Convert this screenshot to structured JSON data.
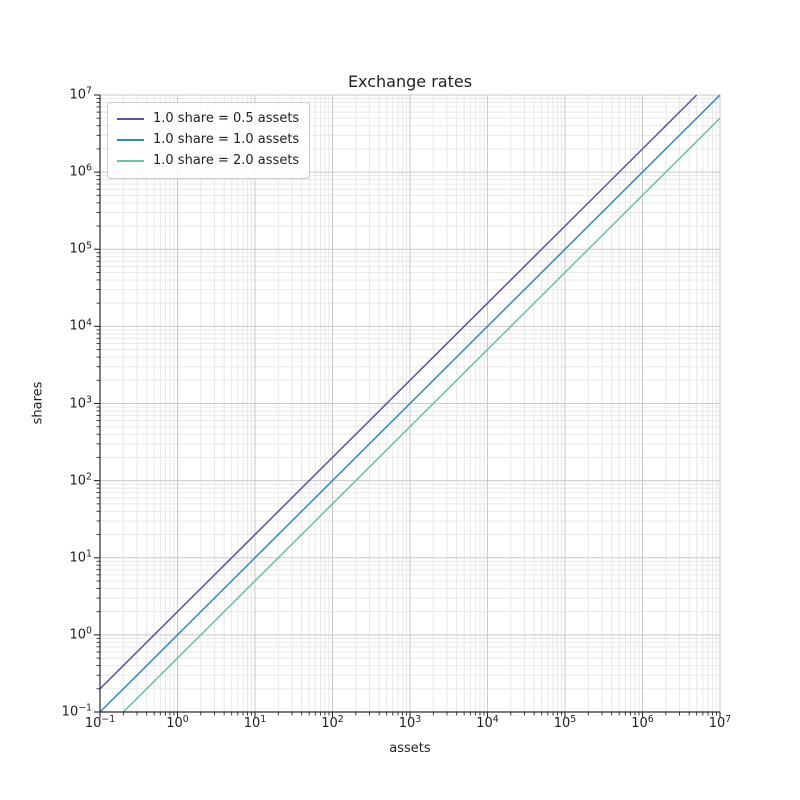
{
  "figure": {
    "background": "#ffffff",
    "text_color": "#1f1f1f",
    "spine_color": "#2b2b2b"
  },
  "chart_data": {
    "type": "line",
    "title": "Exchange rates",
    "xlabel": "assets",
    "ylabel": "shares",
    "xscale": "log",
    "yscale": "log",
    "xlim": [
      0.1,
      10000000
    ],
    "ylim": [
      0.1,
      10000000
    ],
    "x_tick_base": "10",
    "y_tick_base": "10",
    "x_tick_exponents": [
      -1,
      0,
      1,
      2,
      3,
      4,
      5,
      6,
      7
    ],
    "y_tick_exponents": [
      -1,
      0,
      1,
      2,
      3,
      4,
      5,
      6,
      7
    ],
    "grid": {
      "major": true,
      "minor": true,
      "major_color": "#c9c9c9",
      "minor_color": "#e8e8e8"
    },
    "legend": {
      "position": "upper-left",
      "border_color": "#cccccc",
      "background": "rgba(255,255,255,0.85)"
    },
    "series": [
      {
        "name": "1.0 share = 0.5 assets",
        "color": "#5e4fa2",
        "shares_per_asset": 2.0,
        "points": [
          {
            "assets": 0.1,
            "shares": 0.2
          },
          {
            "assets": 5000000,
            "shares": 10000000
          }
        ]
      },
      {
        "name": "1.0 share = 1.0 assets",
        "color": "#3288bd",
        "shares_per_asset": 1.0,
        "points": [
          {
            "assets": 0.1,
            "shares": 0.1
          },
          {
            "assets": 10000000,
            "shares": 10000000
          }
        ]
      },
      {
        "name": "1.0 share = 2.0 assets",
        "color": "#66c2a5",
        "shares_per_asset": 0.5,
        "points": [
          {
            "assets": 0.2,
            "shares": 0.1
          },
          {
            "assets": 10000000,
            "shares": 5000000
          }
        ]
      }
    ]
  }
}
